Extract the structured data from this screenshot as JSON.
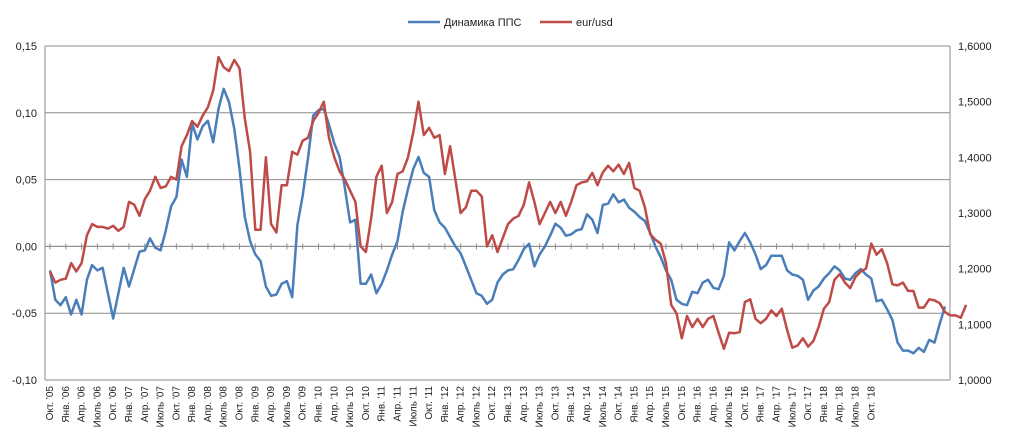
{
  "chart_data": {
    "type": "line",
    "legend_position": "top",
    "grid": "horizontal",
    "y_left": {
      "ticks": [
        "-0,10",
        "-0,05",
        "0,00",
        "0,05",
        "0,10",
        "0,15"
      ],
      "min": -0.1,
      "max": 0.15
    },
    "y_right": {
      "ticks": [
        "1,0000",
        "1,1000",
        "1,2000",
        "1,3000",
        "1,4000",
        "1,5000",
        "1,6000"
      ],
      "min": 1.0,
      "max": 1.6
    },
    "x_tick_labels": [
      "Окт. '05",
      "Янв. '06",
      "Апр. '06",
      "Июль '06",
      "Окт. '06",
      "Янв. '07",
      "Апр. '07",
      "Июль '07",
      "Окт. '07",
      "Янв. '08",
      "Апр. '08",
      "Июль '08",
      "Окт. '08",
      "Янв. '09",
      "Апр. '09",
      "Июль '09",
      "Окт. '09",
      "Янв. '10",
      "Апр. '10",
      "Июль '10",
      "Окт. '10",
      "Янв. '11",
      "Апр. '11",
      "Июль '11",
      "Окт. '11",
      "Янв. '12",
      "Апр. '12",
      "Июль '12",
      "Окт. '12",
      "Янв. '13",
      "Апр. '13",
      "Июль '13",
      "Окт. '13",
      "Янв. '14",
      "Апр. '14",
      "Июль '14",
      "Окт. '14",
      "Янв. '15",
      "Апр. '15",
      "Июль '15",
      "Окт. '15",
      "Янв. '16",
      "Апр. '16",
      "Июль '16",
      "Окт. '16",
      "Янв. '17",
      "Апр. '17",
      "Июль '17",
      "Окт. '17",
      "Янв. '18",
      "Апр. '18",
      "Июль '18",
      "Окт. '18"
    ],
    "series": [
      {
        "name": "Динамика ППС",
        "axis": "left",
        "color": "#4a7ebb",
        "values": [
          -0.018,
          -0.04,
          -0.044,
          -0.038,
          -0.051,
          -0.04,
          -0.051,
          -0.025,
          -0.014,
          -0.018,
          -0.016,
          -0.035,
          -0.054,
          -0.035,
          -0.016,
          -0.03,
          -0.017,
          -0.004,
          -0.003,
          0.006,
          -0.001,
          -0.003,
          0.012,
          0.03,
          0.037,
          0.065,
          0.052,
          0.092,
          0.08,
          0.09,
          0.094,
          0.078,
          0.103,
          0.118,
          0.108,
          0.088,
          0.058,
          0.022,
          0.004,
          -0.006,
          -0.011,
          -0.03,
          -0.037,
          -0.036,
          -0.028,
          -0.026,
          -0.038,
          0.016,
          0.038,
          0.066,
          0.098,
          0.102,
          0.103,
          0.091,
          0.077,
          0.067,
          0.044,
          0.018,
          0.02,
          -0.028,
          -0.028,
          -0.021,
          -0.035,
          -0.028,
          -0.018,
          -0.006,
          0.004,
          0.026,
          0.043,
          0.058,
          0.067,
          0.055,
          0.052,
          0.027,
          0.018,
          0.014,
          0.007,
          0.0,
          -0.005,
          -0.015,
          -0.025,
          -0.035,
          -0.037,
          -0.043,
          -0.04,
          -0.027,
          -0.021,
          -0.018,
          -0.017,
          -0.01,
          -0.002,
          0.002,
          -0.015,
          -0.006,
          0.0,
          0.008,
          0.017,
          0.014,
          0.008,
          0.009,
          0.012,
          0.013,
          0.024,
          0.02,
          0.01,
          0.031,
          0.032,
          0.039,
          0.033,
          0.035,
          0.029,
          0.026,
          0.022,
          0.019,
          0.01,
          0.0,
          -0.008,
          -0.018,
          -0.025,
          -0.04,
          -0.043,
          -0.044,
          -0.034,
          -0.035,
          -0.027,
          -0.025,
          -0.031,
          -0.032,
          -0.022,
          0.003,
          -0.003,
          0.004,
          0.01,
          0.003,
          -0.006,
          -0.017,
          -0.014,
          -0.007,
          -0.007,
          -0.007,
          -0.018,
          -0.021,
          -0.022,
          -0.025,
          -0.04,
          -0.033,
          -0.03,
          -0.024,
          -0.02,
          -0.015,
          -0.018,
          -0.024,
          -0.025,
          -0.02,
          -0.017,
          -0.021,
          -0.024,
          -0.041,
          -0.04,
          -0.047,
          -0.055,
          -0.072,
          -0.078,
          -0.078,
          -0.08,
          -0.076,
          -0.079,
          -0.07,
          -0.072,
          -0.058,
          -0.045
        ]
      },
      {
        "name": "eur/usd",
        "axis": "right",
        "color": "#be4b48",
        "values": [
          1.195,
          1.175,
          1.18,
          1.182,
          1.21,
          1.195,
          1.21,
          1.26,
          1.28,
          1.275,
          1.275,
          1.272,
          1.277,
          1.268,
          1.275,
          1.32,
          1.315,
          1.295,
          1.325,
          1.34,
          1.365,
          1.345,
          1.348,
          1.365,
          1.36,
          1.42,
          1.44,
          1.465,
          1.455,
          1.475,
          1.49,
          1.52,
          1.58,
          1.562,
          1.555,
          1.575,
          1.56,
          1.47,
          1.41,
          1.27,
          1.27,
          1.4,
          1.28,
          1.265,
          1.35,
          1.35,
          1.41,
          1.405,
          1.43,
          1.435,
          1.465,
          1.48,
          1.5,
          1.435,
          1.4,
          1.375,
          1.36,
          1.34,
          1.32,
          1.24,
          1.23,
          1.29,
          1.365,
          1.385,
          1.3,
          1.32,
          1.37,
          1.375,
          1.4,
          1.445,
          1.5,
          1.44,
          1.453,
          1.435,
          1.44,
          1.37,
          1.42,
          1.36,
          1.3,
          1.31,
          1.34,
          1.34,
          1.33,
          1.24,
          1.26,
          1.23,
          1.255,
          1.28,
          1.29,
          1.295,
          1.315,
          1.355,
          1.32,
          1.28,
          1.3,
          1.32,
          1.3,
          1.32,
          1.295,
          1.32,
          1.35,
          1.355,
          1.357,
          1.372,
          1.35,
          1.373,
          1.385,
          1.375,
          1.387,
          1.37,
          1.39,
          1.345,
          1.34,
          1.31,
          1.262,
          1.252,
          1.245,
          1.21,
          1.135,
          1.12,
          1.075,
          1.115,
          1.095,
          1.11,
          1.095,
          1.11,
          1.115,
          1.085,
          1.056,
          1.085,
          1.084,
          1.086,
          1.14,
          1.145,
          1.11,
          1.102,
          1.11,
          1.125,
          1.115,
          1.128,
          1.09,
          1.058,
          1.062,
          1.075,
          1.06,
          1.07,
          1.095,
          1.128,
          1.14,
          1.18,
          1.19,
          1.175,
          1.165,
          1.185,
          1.195,
          1.2,
          1.245,
          1.225,
          1.235,
          1.21,
          1.172,
          1.17,
          1.175,
          1.16,
          1.16,
          1.13,
          1.13,
          1.145,
          1.143,
          1.138,
          1.122,
          1.116,
          1.116,
          1.112,
          1.135
        ]
      }
    ]
  }
}
